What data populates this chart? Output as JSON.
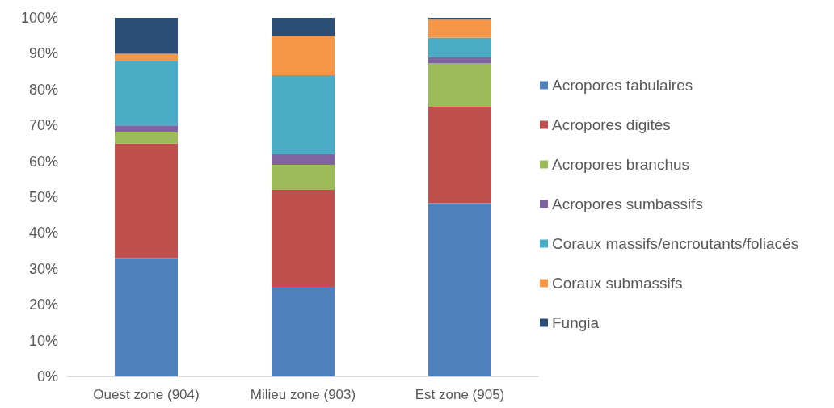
{
  "chart_data": {
    "type": "bar",
    "stacked": true,
    "categories": [
      "Ouest zone (904)",
      "Milieu zone (903)",
      "Est zone (905)"
    ],
    "series": [
      {
        "name": "Acropores tabulaires",
        "color": "#4f81bd",
        "values": [
          33,
          25,
          48.3
        ]
      },
      {
        "name": "Acropores digités",
        "color": "#c0504d",
        "values": [
          32,
          27,
          26.9
        ]
      },
      {
        "name": "Acropores branchus",
        "color": "#9bbb59",
        "values": [
          3,
          7,
          12.1
        ]
      },
      {
        "name": "Acropores sumbassifs",
        "color": "#8064a2",
        "values": [
          2,
          3,
          1.7
        ]
      },
      {
        "name": "Coraux massifs/encroutants/foliacés",
        "color": "#4bacc6",
        "values": [
          18,
          22,
          5.5
        ]
      },
      {
        "name": "Coraux submassifs",
        "color": "#f79646",
        "values": [
          2,
          11,
          5
        ]
      },
      {
        "name": "Fungia",
        "color": "#2c4d75",
        "values": [
          10,
          5,
          0.5
        ]
      }
    ],
    "ylim": [
      0,
      100
    ],
    "yticks": [
      {
        "value": 0,
        "label": "0%"
      },
      {
        "value": 10,
        "label": "10%"
      },
      {
        "value": 20,
        "label": "20%"
      },
      {
        "value": 30,
        "label": "30%"
      },
      {
        "value": 40,
        "label": "40%"
      },
      {
        "value": 50,
        "label": "50%"
      },
      {
        "value": 60,
        "label": "60%"
      },
      {
        "value": 70,
        "label": "70%"
      },
      {
        "value": 80,
        "label": "80%"
      },
      {
        "value": 90,
        "label": "90%"
      },
      {
        "value": 100,
        "label": "100%"
      }
    ],
    "grid": false,
    "legend": "right"
  }
}
